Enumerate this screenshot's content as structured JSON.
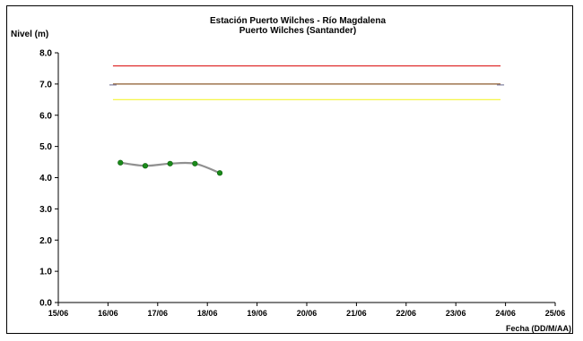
{
  "chart_data": {
    "type": "line",
    "title": "Estación Puerto Wilches - Río Magdalena",
    "subtitle": "Puerto Wilches (Santander)",
    "ylabel": "Nivel (m)",
    "xlabel": "Fecha (DD/M/AA)",
    "ylim": [
      0,
      8
    ],
    "xlim": [
      0,
      10
    ],
    "yticks": [
      0,
      1,
      2,
      3,
      4,
      5,
      6,
      7,
      8
    ],
    "ytick_labels": [
      "0.0",
      "1.0",
      "2.0",
      "3.0",
      "4.0",
      "5.0",
      "6.0",
      "7.0",
      "8.0"
    ],
    "xticks": [
      0,
      1,
      2,
      3,
      4,
      5,
      6,
      7,
      8,
      9,
      10
    ],
    "xtick_labels": [
      "15/06",
      "16/06",
      "17/06",
      "18/06",
      "19/06",
      "20/06",
      "21/06",
      "22/06",
      "23/06",
      "24/06",
      "25/06"
    ],
    "grid": false,
    "legend": "none",
    "thresholds": [
      {
        "value": 7.58,
        "x": [
          1.1,
          8.9
        ],
        "color": "#e03030"
      },
      {
        "value": 7.0,
        "x": [
          1.1,
          8.9
        ],
        "color": "#8b5a2b"
      },
      {
        "value": 6.5,
        "x": [
          1.1,
          8.9
        ],
        "color": "#f5f532"
      }
    ],
    "series": [
      {
        "x": [
          1.25,
          1.75,
          2.25,
          2.75,
          3.25
        ],
        "y": [
          4.48,
          4.38,
          4.45,
          4.45,
          4.15
        ],
        "line_color": "#909090",
        "marker_color": "#1a8a1a"
      }
    ]
  }
}
